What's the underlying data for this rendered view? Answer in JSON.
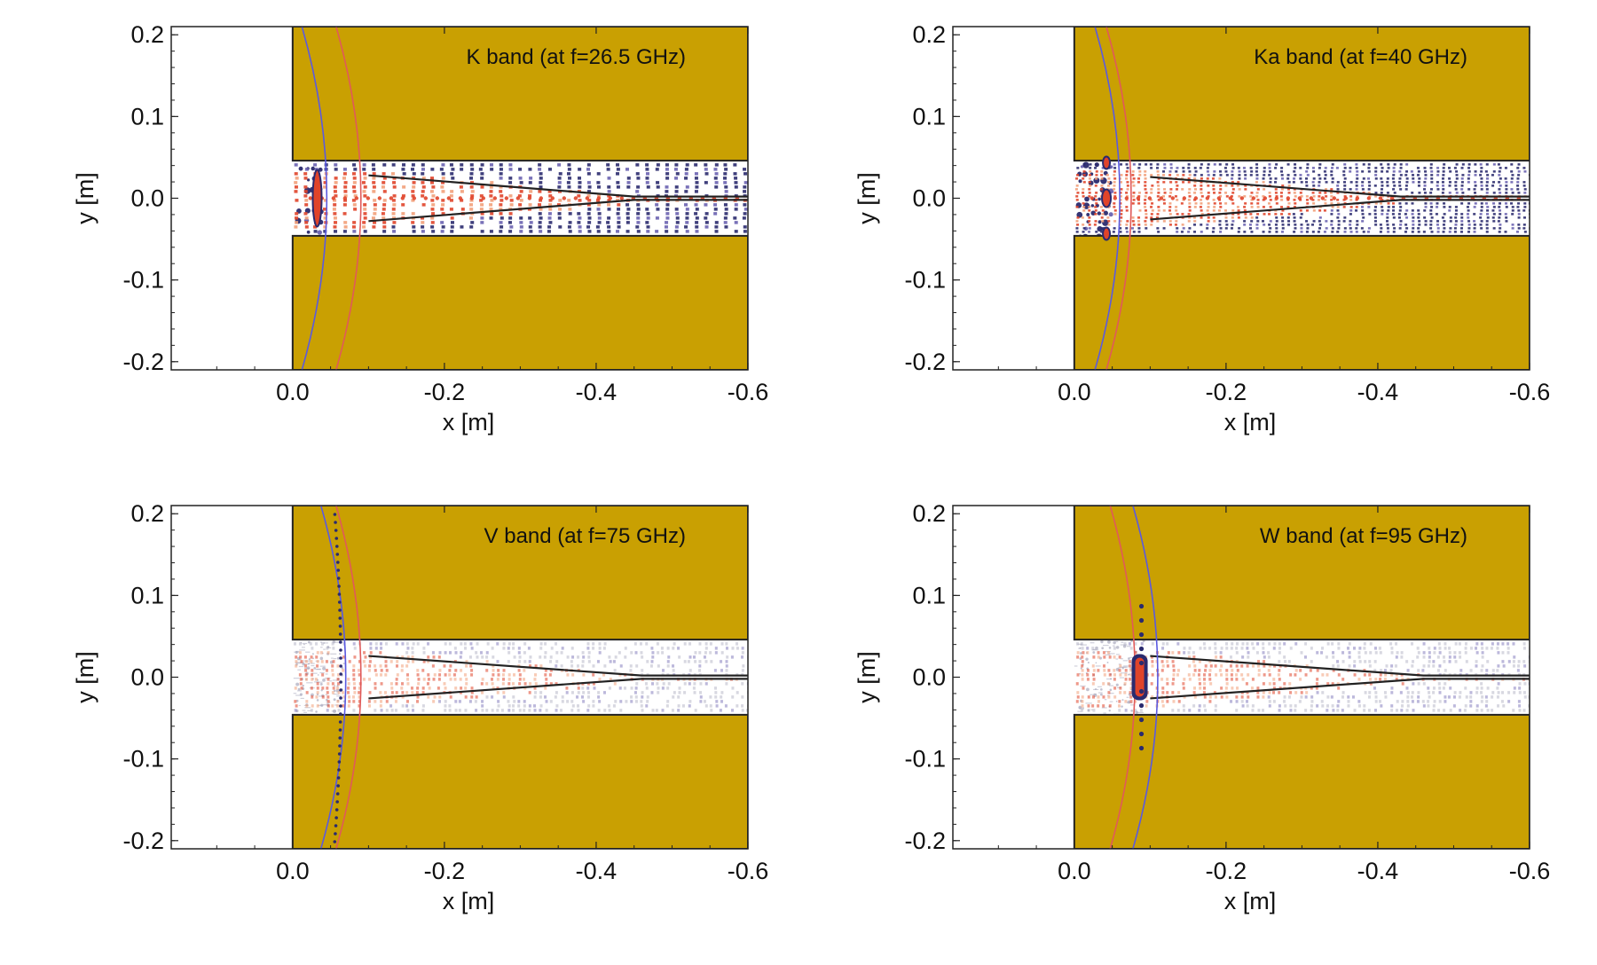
{
  "colors": {
    "metal": "#c9a002",
    "pattern_dark": "#2a2a6e",
    "pattern_purple": "#6a62b0",
    "pattern_red": "#e0442a",
    "pattern_orange": "#f2a07a",
    "pattern_gray": "#a9a9bd",
    "line_red": "#e05a5a",
    "line_blue": "#5a5ae0",
    "frame": "#222222"
  },
  "chart_data": [
    {
      "type": "heatmap",
      "title": "K band (at f=26.5 GHz)",
      "xlabel": "x [m]",
      "ylabel": "y [m]",
      "xlim": [
        0.16,
        -0.6
      ],
      "ylim": [
        -0.21,
        0.21
      ],
      "x_ticks": [
        {
          "value": 0.0,
          "label": "0.0"
        },
        {
          "value": -0.2,
          "label": "-0.2"
        },
        {
          "value": -0.4,
          "label": "-0.4"
        },
        {
          "value": -0.6,
          "label": "-0.6"
        }
      ],
      "y_ticks": [
        {
          "value": 0.2,
          "label": "0.2"
        },
        {
          "value": 0.1,
          "label": "0.1"
        },
        {
          "value": 0.0,
          "label": "0.0"
        },
        {
          "value": -0.1,
          "label": "-0.1"
        },
        {
          "value": -0.2,
          "label": "-0.2"
        }
      ],
      "waveguide_halfwidth": 0.046,
      "metal_x_start": 0.0,
      "horn_x": [
        -0.1,
        -0.45
      ],
      "horn_halfwidth": 0.028,
      "arc_red_x": -0.09,
      "arc_blue_x": -0.045,
      "front_x": -0.03,
      "density": "high",
      "style": "dark"
    },
    {
      "type": "heatmap",
      "title": "Ka band (at f=40 GHz)",
      "xlabel": "x [m]",
      "ylabel": "y [m]",
      "xlim": [
        0.16,
        -0.6
      ],
      "ylim": [
        -0.21,
        0.21
      ],
      "x_ticks": [
        {
          "value": 0.0,
          "label": "0.0"
        },
        {
          "value": -0.2,
          "label": "-0.2"
        },
        {
          "value": -0.4,
          "label": "-0.4"
        },
        {
          "value": -0.6,
          "label": "-0.6"
        }
      ],
      "y_ticks": [
        {
          "value": 0.2,
          "label": "0.2"
        },
        {
          "value": 0.1,
          "label": "0.1"
        },
        {
          "value": 0.0,
          "label": "0.0"
        },
        {
          "value": -0.1,
          "label": "-0.1"
        },
        {
          "value": -0.2,
          "label": "-0.2"
        }
      ],
      "waveguide_halfwidth": 0.046,
      "metal_x_start": 0.0,
      "horn_x": [
        -0.1,
        -0.43
      ],
      "horn_halfwidth": 0.026,
      "arc_red_x": -0.075,
      "arc_blue_x": -0.06,
      "front_x": -0.04,
      "density": "higher",
      "style": "dark"
    },
    {
      "type": "heatmap",
      "title": "V band (at f=75 GHz)",
      "xlabel": "x [m]",
      "ylabel": "y [m]",
      "xlim": [
        0.16,
        -0.6
      ],
      "ylim": [
        -0.21,
        0.21
      ],
      "x_ticks": [
        {
          "value": 0.0,
          "label": "0.0"
        },
        {
          "value": -0.2,
          "label": "-0.2"
        },
        {
          "value": -0.4,
          "label": "-0.4"
        },
        {
          "value": -0.6,
          "label": "-0.6"
        }
      ],
      "y_ticks": [
        {
          "value": 0.2,
          "label": "0.2"
        },
        {
          "value": 0.1,
          "label": "0.1"
        },
        {
          "value": 0.0,
          "label": "0.0"
        },
        {
          "value": -0.1,
          "label": "-0.1"
        },
        {
          "value": -0.2,
          "label": "-0.2"
        }
      ],
      "waveguide_halfwidth": 0.046,
      "metal_x_start": 0.0,
      "horn_x": [
        -0.1,
        -0.46
      ],
      "horn_halfwidth": 0.026,
      "arc_red_x": -0.09,
      "arc_blue_x": -0.07,
      "front_x": -0.06,
      "density": "fine",
      "style": "light"
    },
    {
      "type": "heatmap",
      "title": "W band (at f=95 GHz)",
      "xlabel": "x [m]",
      "ylabel": "y [m]",
      "xlim": [
        0.16,
        -0.6
      ],
      "ylim": [
        -0.21,
        0.21
      ],
      "x_ticks": [
        {
          "value": 0.0,
          "label": "0.0"
        },
        {
          "value": -0.2,
          "label": "-0.2"
        },
        {
          "value": -0.4,
          "label": "-0.4"
        },
        {
          "value": -0.6,
          "label": "-0.6"
        }
      ],
      "y_ticks": [
        {
          "value": 0.2,
          "label": "0.2"
        },
        {
          "value": 0.1,
          "label": "0.1"
        },
        {
          "value": 0.0,
          "label": "0.0"
        },
        {
          "value": -0.1,
          "label": "-0.1"
        },
        {
          "value": -0.2,
          "label": "-0.2"
        }
      ],
      "waveguide_halfwidth": 0.046,
      "metal_x_start": 0.0,
      "horn_x": [
        -0.1,
        -0.46
      ],
      "horn_halfwidth": 0.026,
      "arc_red_x": -0.08,
      "arc_blue_x": -0.11,
      "front_x": -0.085,
      "density": "fine",
      "style": "light-w"
    }
  ]
}
